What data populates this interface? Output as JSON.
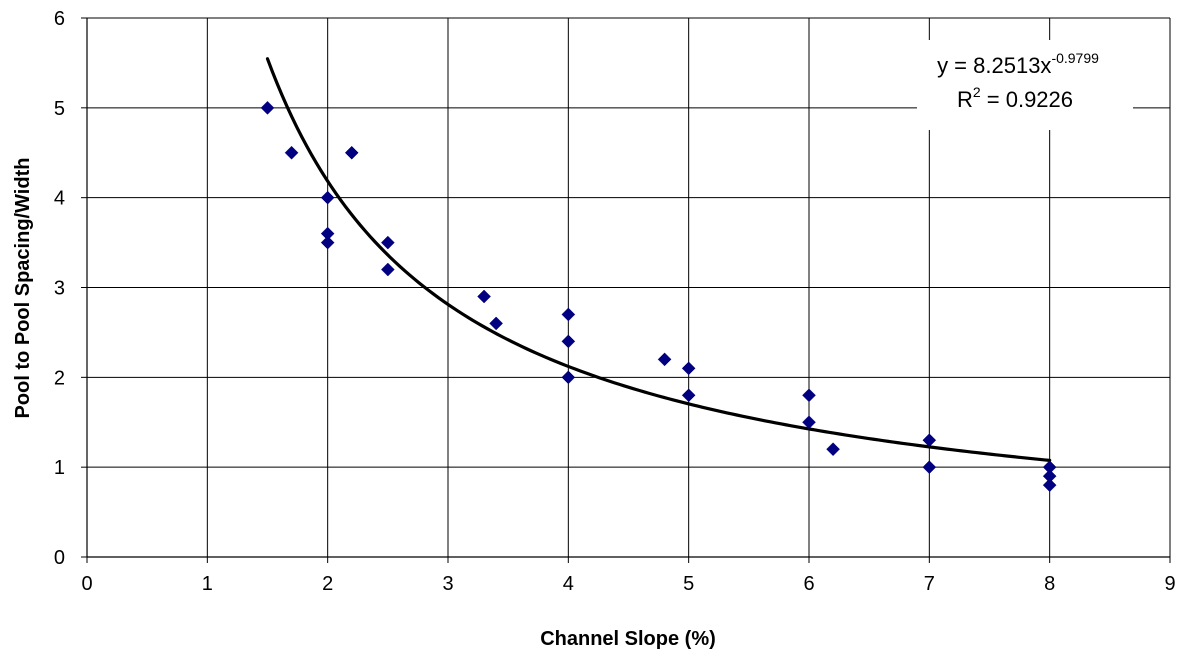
{
  "chart_data": {
    "type": "scatter",
    "xlabel": "Channel Slope (%)",
    "ylabel": "Pool to Pool Spacing/Width",
    "xlim": [
      0,
      9
    ],
    "ylim": [
      0,
      6
    ],
    "x_ticks": [
      0,
      1,
      2,
      3,
      4,
      5,
      6,
      7,
      8,
      9
    ],
    "y_ticks": [
      0,
      1,
      2,
      3,
      4,
      5,
      6
    ],
    "grid": true,
    "marker_color": "#000080",
    "trendline_color": "#000000",
    "series": [
      {
        "points": [
          {
            "x": 1.5,
            "y": 5.0
          },
          {
            "x": 1.7,
            "y": 4.5
          },
          {
            "x": 2.0,
            "y": 4.0
          },
          {
            "x": 2.0,
            "y": 3.6
          },
          {
            "x": 2.0,
            "y": 3.5
          },
          {
            "x": 2.2,
            "y": 4.5
          },
          {
            "x": 2.5,
            "y": 3.5
          },
          {
            "x": 2.5,
            "y": 3.2
          },
          {
            "x": 3.3,
            "y": 2.9
          },
          {
            "x": 3.4,
            "y": 2.6
          },
          {
            "x": 4.0,
            "y": 2.7
          },
          {
            "x": 4.0,
            "y": 2.4
          },
          {
            "x": 4.0,
            "y": 2.0
          },
          {
            "x": 4.8,
            "y": 2.2
          },
          {
            "x": 5.0,
            "y": 2.1
          },
          {
            "x": 5.0,
            "y": 1.8
          },
          {
            "x": 6.0,
            "y": 1.8
          },
          {
            "x": 6.0,
            "y": 1.5
          },
          {
            "x": 6.2,
            "y": 1.2
          },
          {
            "x": 7.0,
            "y": 1.3
          },
          {
            "x": 7.0,
            "y": 1.0
          },
          {
            "x": 8.0,
            "y": 1.0
          },
          {
            "x": 8.0,
            "y": 0.9
          },
          {
            "x": 8.0,
            "y": 0.8
          }
        ]
      }
    ],
    "trendline": {
      "type": "power",
      "coefficient": 8.2513,
      "exponent": -0.9799,
      "x_range": [
        1.5,
        8.0
      ]
    },
    "annotation": {
      "equation_base": "y = 8.2513x",
      "equation_exponent": "-0.9799",
      "r2_prefix": "R",
      "r2_superscript": "2",
      "r2_value": " = 0.9226",
      "placement": "top-right"
    }
  }
}
